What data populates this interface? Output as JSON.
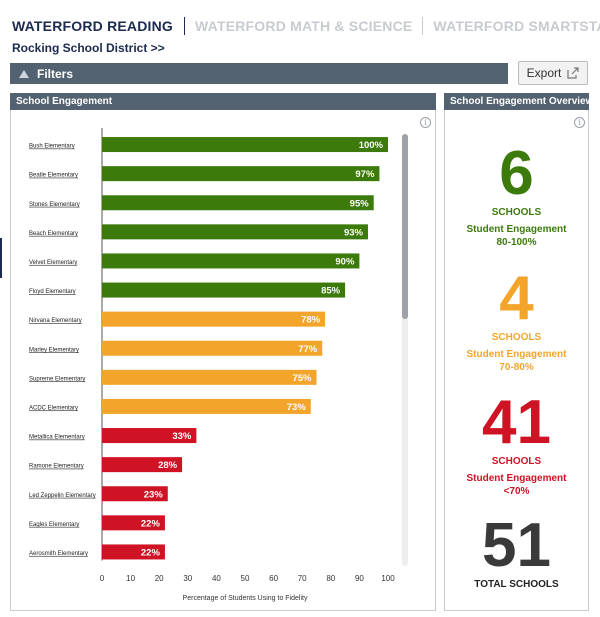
{
  "nav": {
    "tabs": [
      {
        "label": "WATERFORD READING",
        "active": true
      },
      {
        "label": "WATERFORD MATH & SCIENCE",
        "active": false
      },
      {
        "label": "WATERFORD SMARTSTART",
        "active": false
      }
    ]
  },
  "breadcrumb": "Rocking School District >>",
  "filters_label": "Filters",
  "export_label": "Export",
  "panels": {
    "left_title": "School Engagement",
    "right_title": "School Engagement Overview"
  },
  "chart_data": {
    "type": "bar",
    "orientation": "horizontal",
    "categories": [
      "Bush Elementary",
      "Beatle Elementary",
      "Stones Elementary",
      "Beach Elementary",
      "Velvet Elementary",
      "Floyd Elementary",
      "Nirvana Elementary",
      "Marley Elementary",
      "Supreme Elementary",
      "ACDC Elementary",
      "Metallica Elementary",
      "Ramone Elementary",
      "Led Zeppelin Elementary",
      "Eagles Elementary",
      "Aerosmith Elementary"
    ],
    "values": [
      100,
      97,
      95,
      93,
      90,
      85,
      78,
      77,
      75,
      73,
      33,
      28,
      23,
      22,
      22
    ],
    "value_labels": [
      "100%",
      "97%",
      "95%",
      "93%",
      "90%",
      "85%",
      "78%",
      "77%",
      "75%",
      "73%",
      "33%",
      "28%",
      "23%",
      "22%",
      "22%"
    ],
    "xlabel": "Percentage of Students Using to Fidelity",
    "ylabel": "",
    "xlim": [
      0,
      100
    ],
    "xticks": [
      0,
      10,
      20,
      30,
      40,
      50,
      60,
      70,
      80,
      90,
      100
    ],
    "xtick_labels": [
      "0",
      "10",
      "20",
      "30",
      "40",
      "50",
      "60",
      "70",
      "80",
      "90",
      "100"
    ],
    "colors": {
      "high": "#3c7a0c",
      "medium": "#f3a52b",
      "low": "#cf1224"
    },
    "thresholds": {
      "high": 80,
      "medium": 70
    },
    "grid": false
  },
  "overview": {
    "high": {
      "count": "6",
      "label": "SCHOOLS",
      "line1": "Student Engagement",
      "line2": "80-100%",
      "color": "#3c7a0c"
    },
    "medium": {
      "count": "4",
      "label": "SCHOOLS",
      "line1": "Student Engagement",
      "line2": "70-80%",
      "color": "#f3a52b"
    },
    "low": {
      "count": "41",
      "label": "SCHOOLS",
      "line1": "Student Engagement",
      "line2": "<70%",
      "color": "#cf1224"
    },
    "total": {
      "count": "51",
      "label": "TOTAL SCHOOLS",
      "color": "#3a3a3a"
    }
  }
}
